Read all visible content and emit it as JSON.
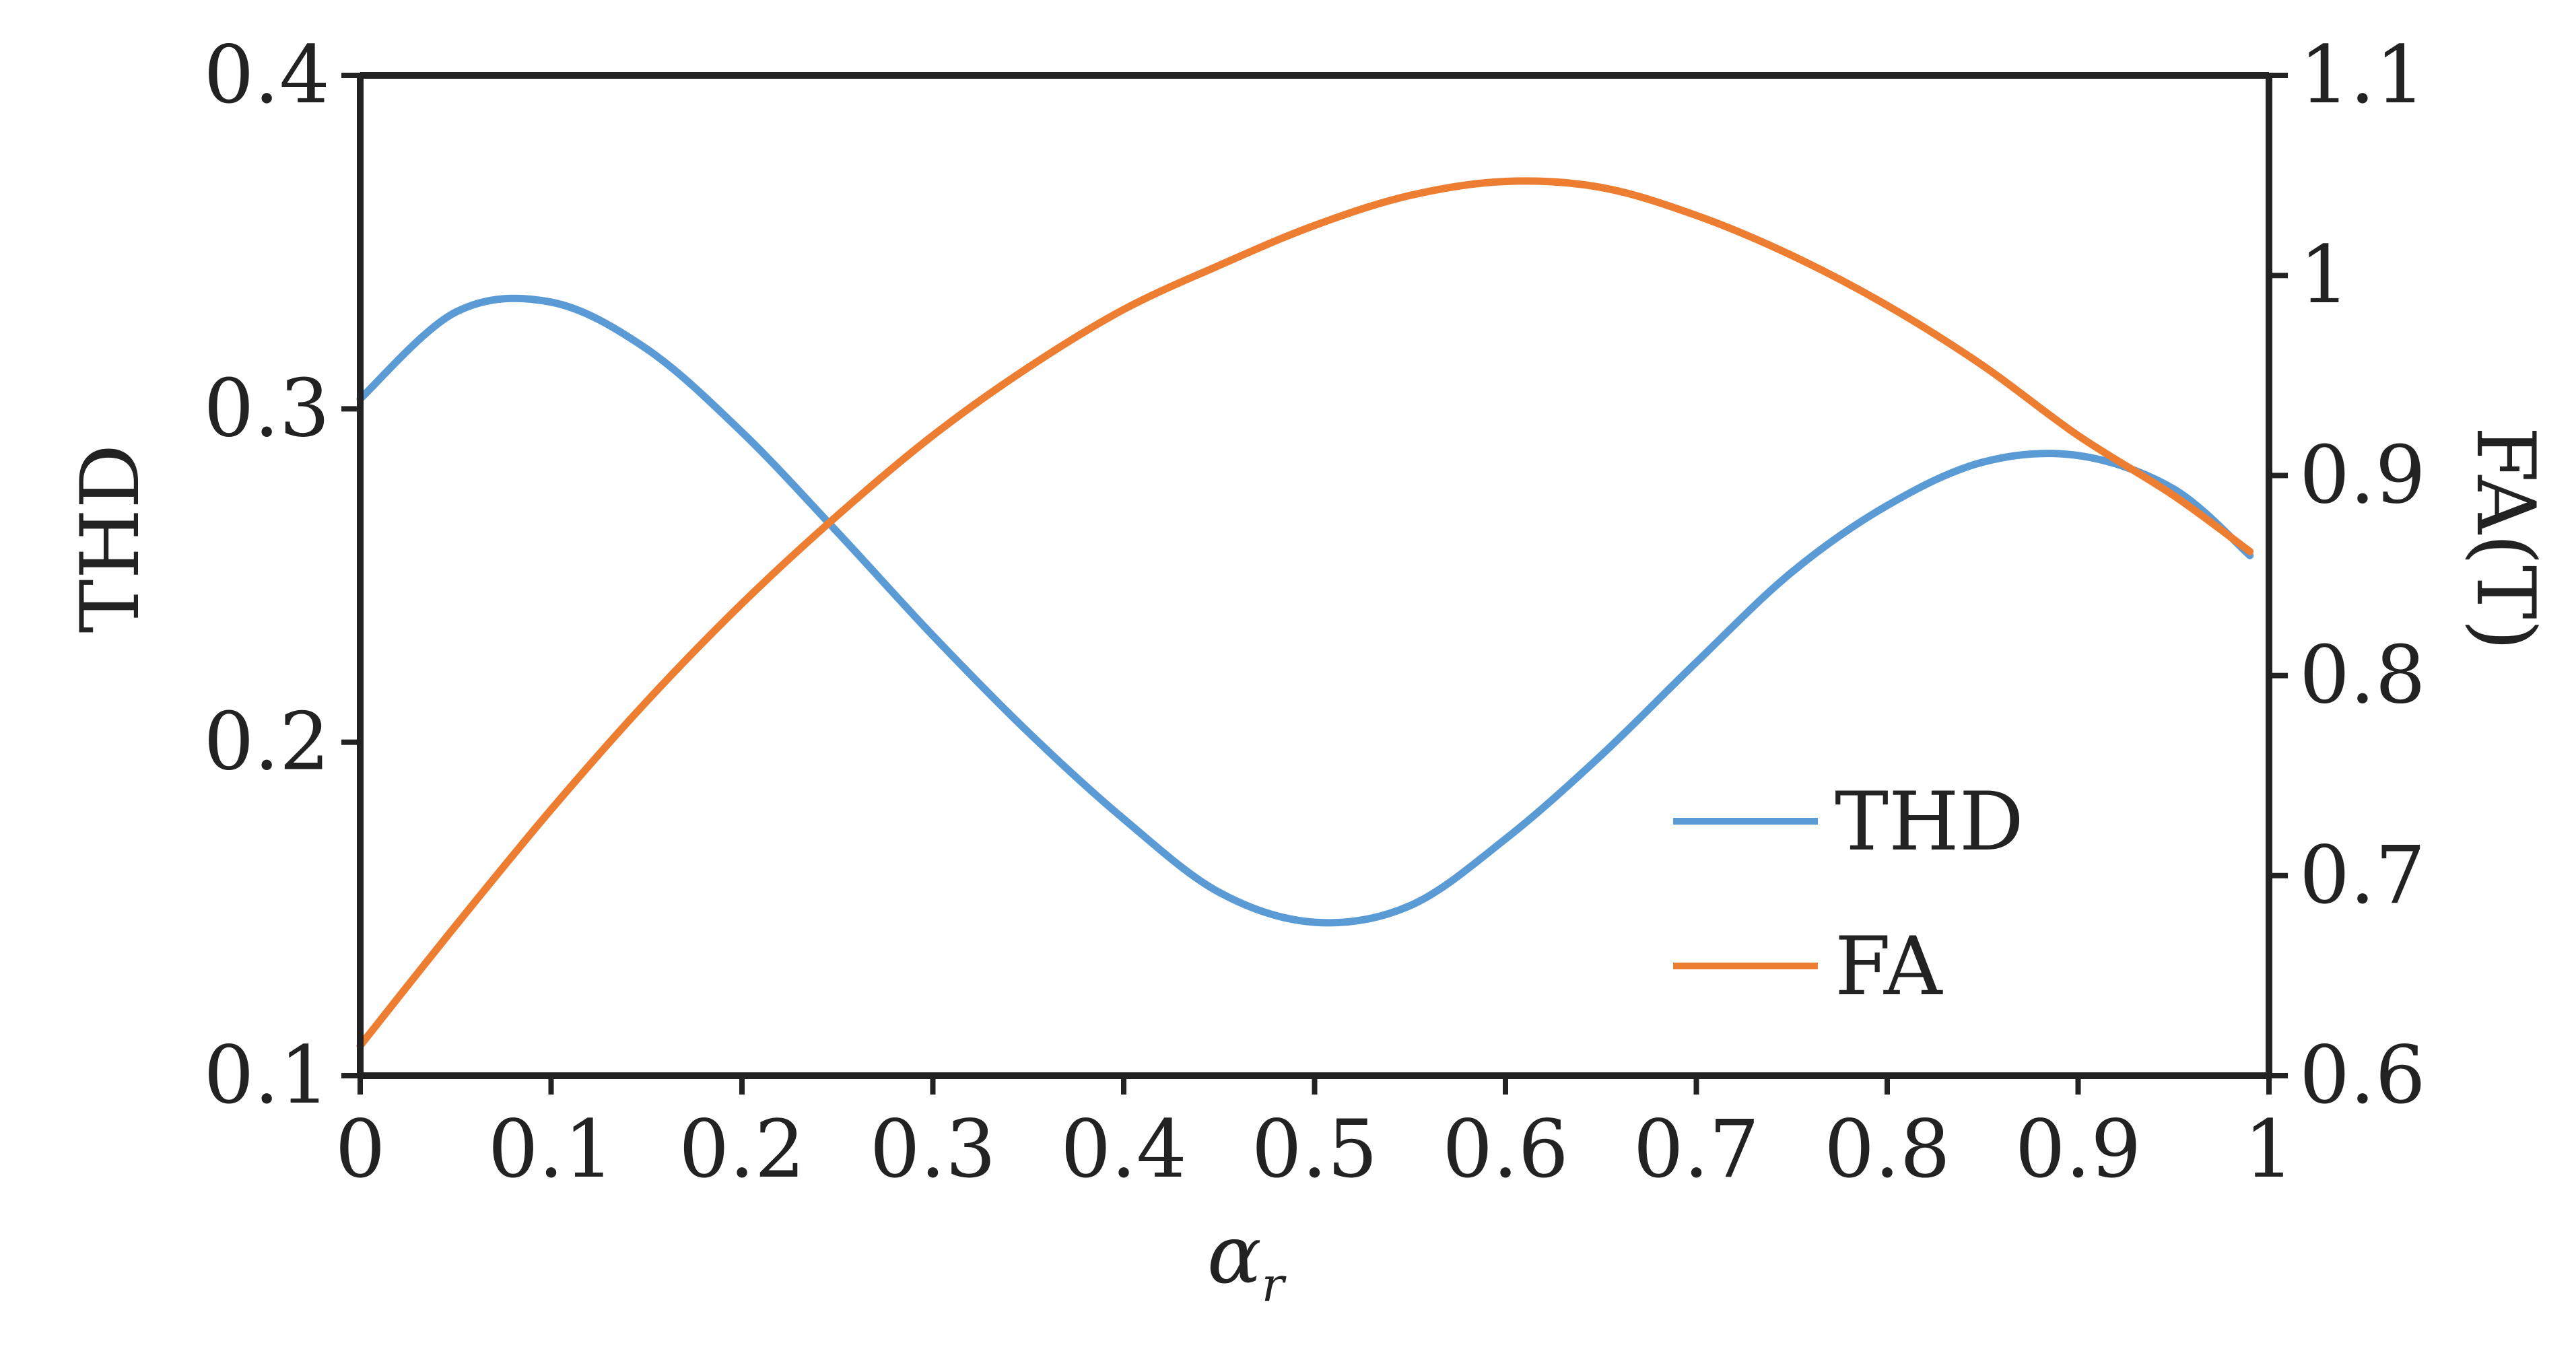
{
  "chart_data": {
    "type": "line",
    "xlabel": "α",
    "xlabel_subscript": "r",
    "ylabel_left": "THD",
    "ylabel_right": "FA(T)",
    "xlim": [
      0,
      1
    ],
    "ylim_left": [
      0.1,
      0.4
    ],
    "ylim_right": [
      0.6,
      1.1
    ],
    "x_ticks": [
      "0",
      "0.1",
      "0.2",
      "0.3",
      "0.4",
      "0.5",
      "0.6",
      "0.7",
      "0.8",
      "0.9",
      "1"
    ],
    "y_left_ticks": [
      "0.1",
      "0.2",
      "0.3",
      "0.4"
    ],
    "y_right_ticks": [
      "0.6",
      "0.7",
      "0.8",
      "0.9",
      "1",
      "1.1"
    ],
    "legend_position": "lower-right",
    "grid": false,
    "series": [
      {
        "name": "THD",
        "axis": "left",
        "color": "#5b9bd5",
        "x": [
          0,
          0.05,
          0.1,
          0.15,
          0.2,
          0.25,
          0.3,
          0.35,
          0.4,
          0.45,
          0.5,
          0.55,
          0.6,
          0.65,
          0.7,
          0.75,
          0.8,
          0.85,
          0.9,
          0.95,
          0.99
        ],
        "y": [
          0.303,
          0.329,
          0.332,
          0.318,
          0.293,
          0.263,
          0.232,
          0.203,
          0.177,
          0.155,
          0.146,
          0.151,
          0.171,
          0.196,
          0.224,
          0.251,
          0.271,
          0.284,
          0.286,
          0.276,
          0.256
        ]
      },
      {
        "name": "FA",
        "axis": "right",
        "color": "#ed7d31",
        "x": [
          0,
          0.05,
          0.1,
          0.15,
          0.2,
          0.25,
          0.3,
          0.35,
          0.4,
          0.45,
          0.5,
          0.55,
          0.6,
          0.65,
          0.7,
          0.75,
          0.8,
          0.85,
          0.9,
          0.95,
          0.99
        ],
        "y": [
          0.615,
          0.675,
          0.733,
          0.787,
          0.836,
          0.88,
          0.92,
          0.954,
          0.983,
          1.005,
          1.025,
          1.04,
          1.047,
          1.044,
          1.03,
          1.01,
          0.985,
          0.955,
          0.92,
          0.89,
          0.862
        ]
      }
    ]
  }
}
